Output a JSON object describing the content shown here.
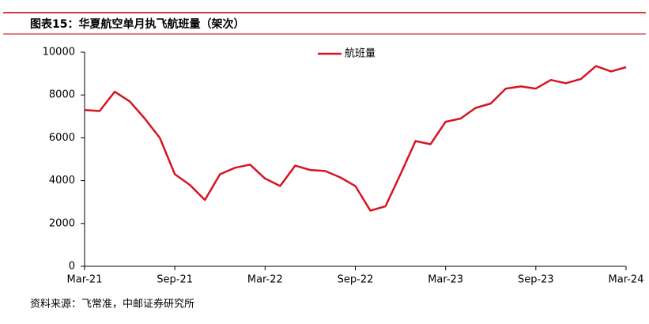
{
  "header": {
    "title": "图表15：华夏航空单月执飞航班量（架次）"
  },
  "chart_data": {
    "type": "line",
    "categories": [
      "Mar-21",
      null,
      null,
      null,
      null,
      null,
      "Sep-21",
      null,
      null,
      null,
      null,
      null,
      "Mar-22",
      null,
      null,
      null,
      null,
      null,
      "Sep-22",
      null,
      null,
      null,
      null,
      null,
      "Mar-23",
      null,
      null,
      null,
      null,
      null,
      "Sep-23",
      null,
      null,
      null,
      null,
      null,
      "Mar-24"
    ],
    "series": [
      {
        "name": "航班量",
        "color": "#d7141f",
        "values": [
          7300,
          7250,
          8150,
          7700,
          6900,
          6000,
          4300,
          3800,
          3100,
          4300,
          4600,
          4750,
          4100,
          3750,
          4700,
          4500,
          4450,
          4150,
          3750,
          2600,
          2800,
          4300,
          5850,
          5700,
          6750,
          6900,
          7400,
          7600,
          8300,
          8400,
          8300,
          8700,
          8550,
          8750,
          9350,
          9100,
          9300
        ]
      }
    ],
    "ylim": [
      0,
      10000
    ],
    "yticks": [
      0,
      2000,
      4000,
      6000,
      8000,
      10000
    ],
    "grid": false,
    "legend": "top"
  },
  "footer": {
    "source": "资料来源：飞常准，中邮证券研究所"
  }
}
